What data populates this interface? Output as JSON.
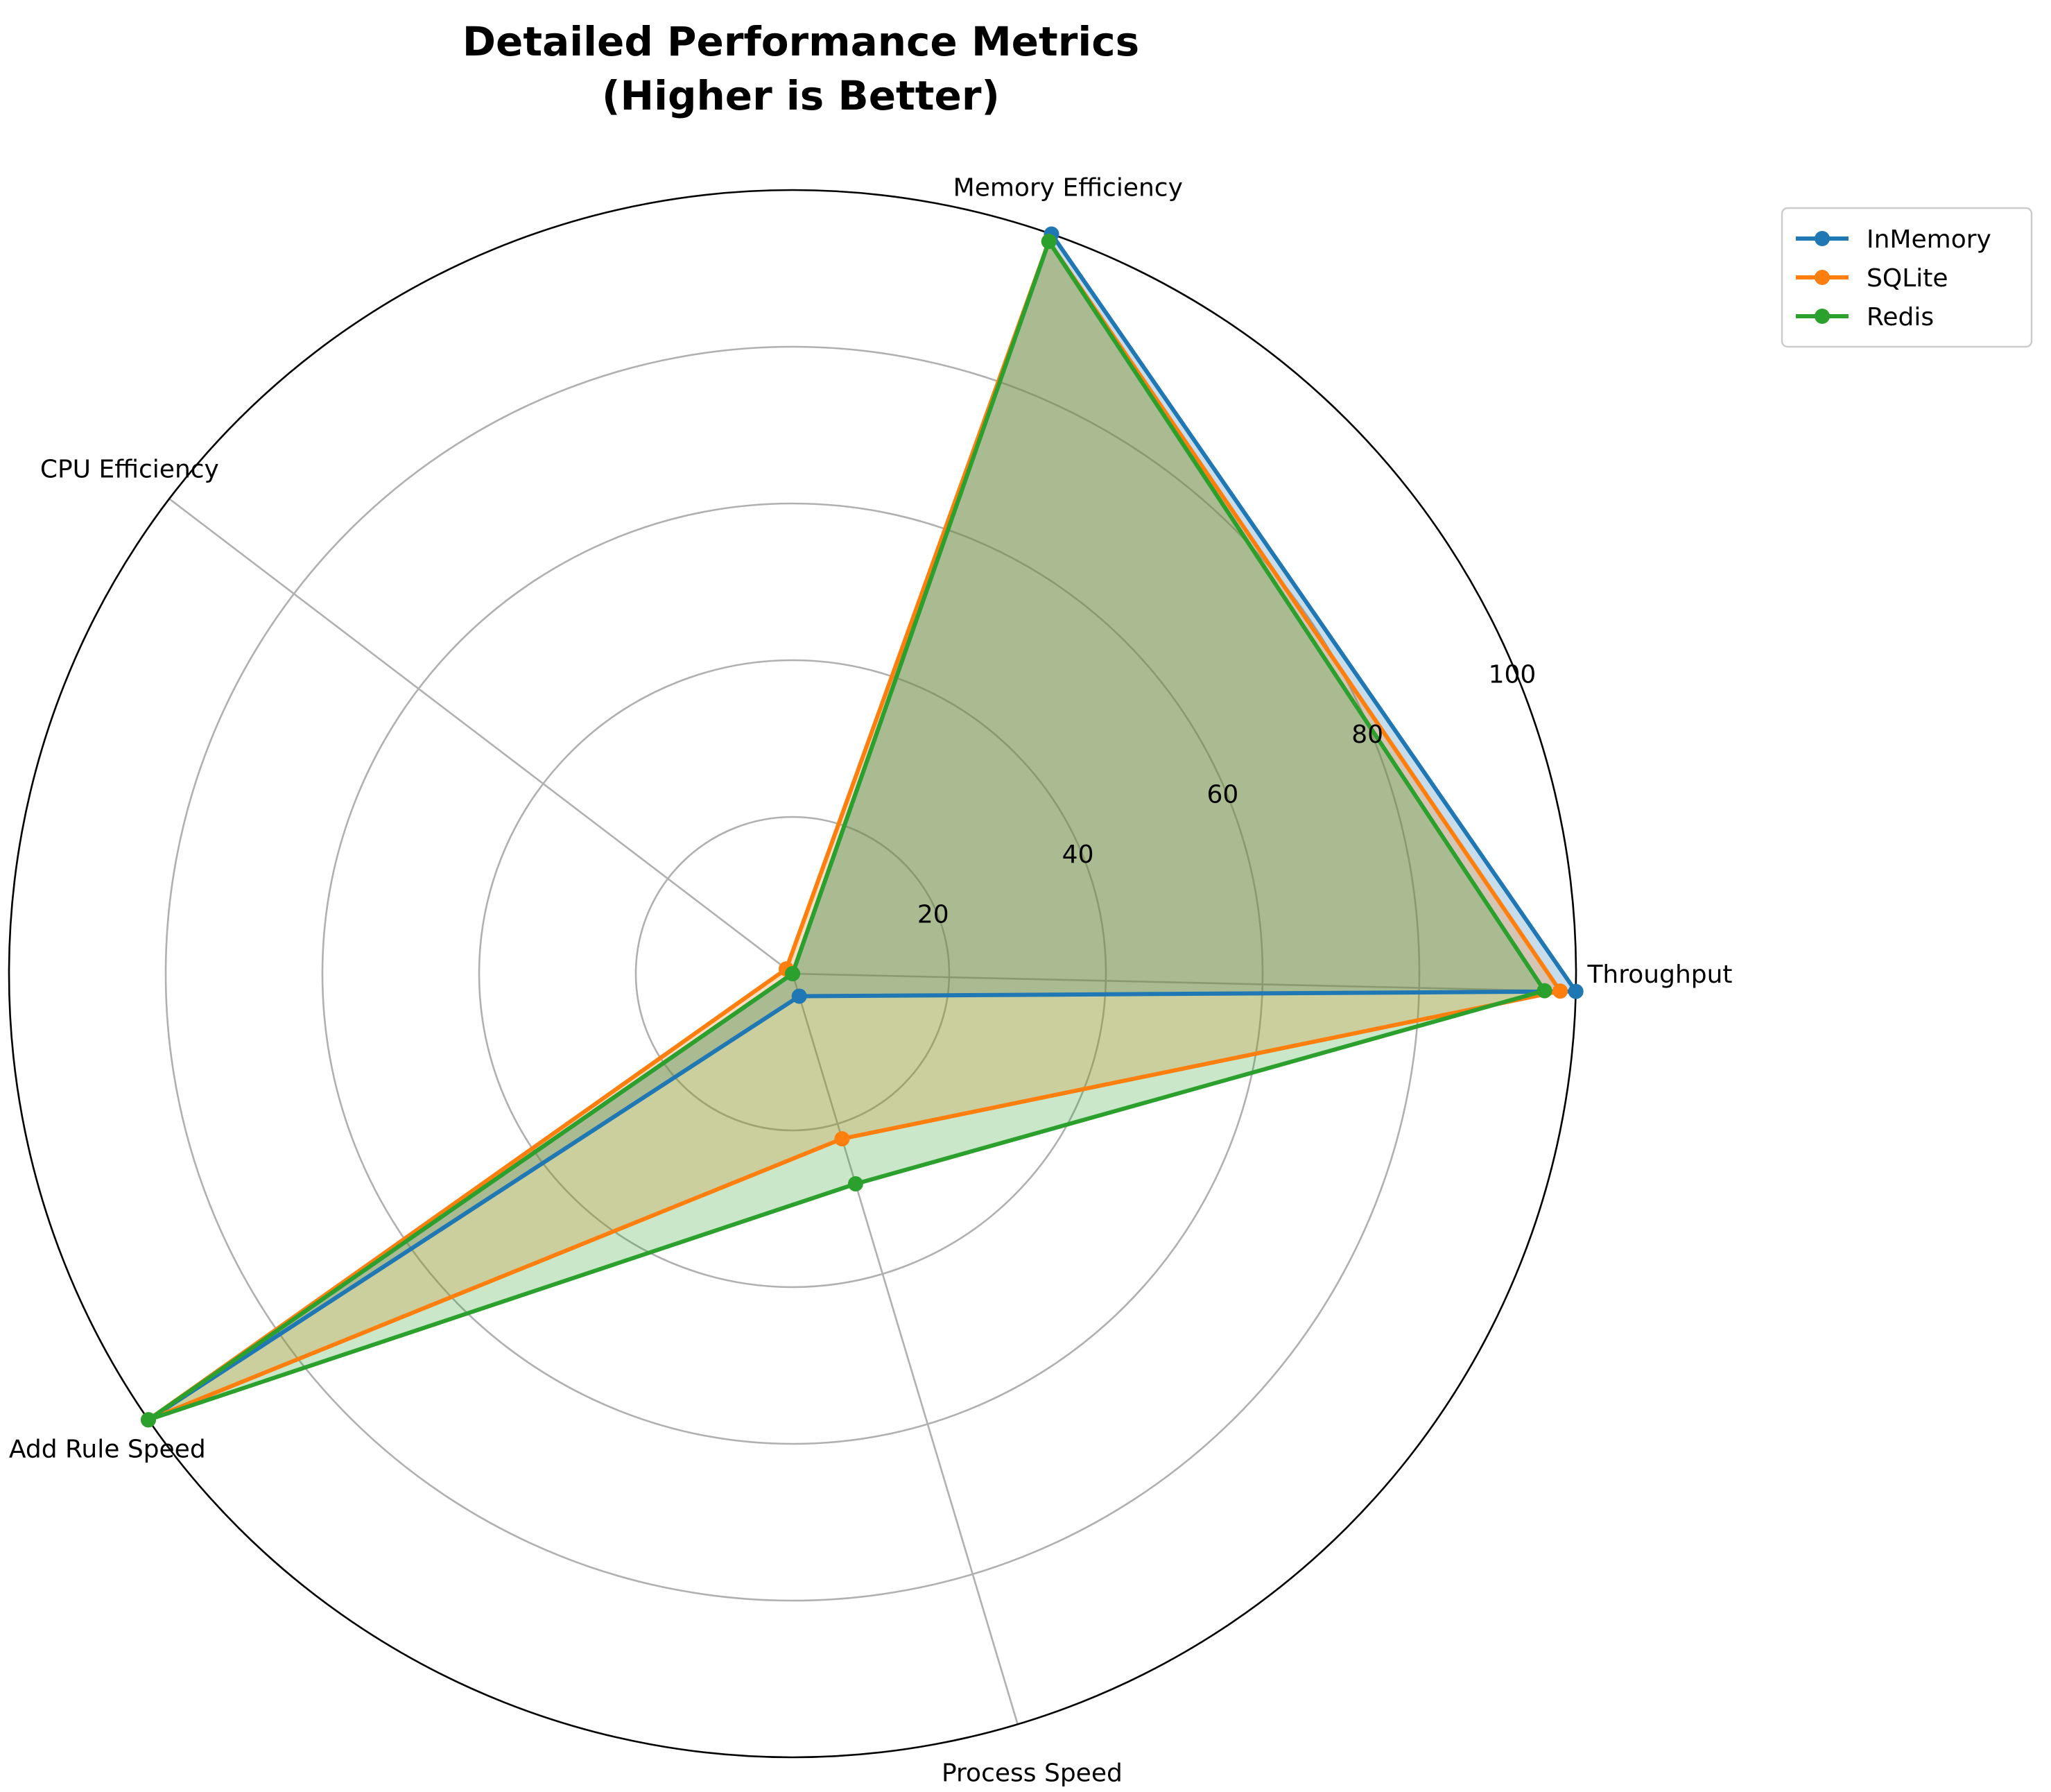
{
  "chart_data": {
    "type": "radar",
    "title_lines": [
      "Detailed Performance Metrics",
      "(Higher is Better)"
    ],
    "categories": [
      "Throughput",
      "Memory Efficiency",
      "CPU Efficiency",
      "Add Rule Speed",
      "Process Speed"
    ],
    "rlim": [
      0,
      100
    ],
    "rticks": [
      20,
      40,
      60,
      80,
      100
    ],
    "rtick_labels": [
      "20",
      "40",
      "60",
      "80",
      "100"
    ],
    "grid": true,
    "legend_position": "upper-right",
    "series": [
      {
        "name": "InMemory",
        "color": "#1f77b4",
        "values": [
          100,
          100,
          0,
          100,
          3
        ]
      },
      {
        "name": "SQLite",
        "color": "#ff7f0e",
        "values": [
          98,
          99,
          1,
          100,
          22
        ]
      },
      {
        "name": "Redis",
        "color": "#2ca02c",
        "values": [
          96,
          99,
          0,
          100,
          28
        ]
      }
    ]
  }
}
